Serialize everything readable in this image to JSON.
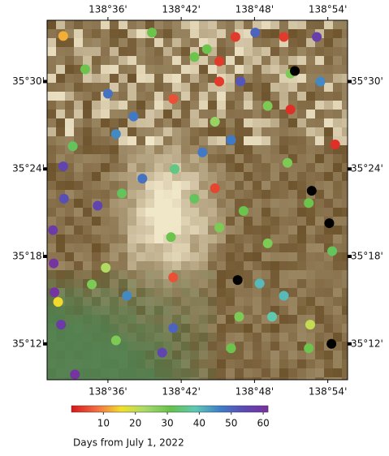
{
  "chart_data": {
    "type": "scatter",
    "xticks": [
      {
        "value": 138.6,
        "label": "138°36'"
      },
      {
        "value": 138.7,
        "label": "138°42'"
      },
      {
        "value": 138.8,
        "label": "138°48'"
      },
      {
        "value": 138.9,
        "label": "138°54'"
      }
    ],
    "yticks": [
      {
        "value": 35.5,
        "label": "35°30'"
      },
      {
        "value": 35.4,
        "label": "35°24'"
      },
      {
        "value": 35.3,
        "label": "35°18'"
      },
      {
        "value": 35.2,
        "label": "35°12'"
      }
    ],
    "xlim": [
      138.517,
      138.927
    ],
    "ylim": [
      35.159,
      35.57
    ],
    "colorbar": {
      "label": "Days from July 1, 2022",
      "clim": [
        0,
        61.5
      ],
      "ticks": [
        10,
        20,
        30,
        40,
        50,
        60
      ],
      "colormap": [
        "#d7191c",
        "#f46d43",
        "#f2e02c",
        "#a6d96a",
        "#66c24a",
        "#5ec9b5",
        "#3e7fc8",
        "#5b49b4",
        "#7b2f9e"
      ]
    },
    "points": {
      "lon": [
        138.539,
        138.774,
        138.84,
        138.752,
        138.752,
        138.849,
        138.91,
        138.746,
        138.689,
        138.689,
        138.6,
        138.635,
        138.611,
        138.729,
        138.647,
        138.539,
        138.54,
        138.586,
        138.525,
        138.526,
        138.527,
        138.536,
        138.555,
        138.674,
        138.689,
        138.626,
        138.885,
        138.801,
        138.781,
        138.89,
        138.768,
        138.807,
        138.84,
        138.824,
        138.691,
        138.619,
        138.686,
        138.752,
        138.785,
        138.818,
        138.874,
        138.906,
        138.718,
        138.66,
        138.818,
        138.746,
        138.569,
        138.552,
        138.578,
        138.611,
        138.768,
        138.874,
        138.779,
        138.845,
        138.735,
        138.849,
        138.876,
        138.532,
        138.597,
        138.718
      ],
      "lat": [
        35.552,
        35.551,
        35.551,
        35.523,
        35.5,
        35.468,
        35.428,
        35.378,
        35.276,
        35.48,
        35.486,
        35.46,
        35.44,
        35.419,
        35.389,
        35.403,
        35.366,
        35.358,
        35.33,
        35.292,
        35.259,
        35.222,
        35.165,
        35.19,
        35.218,
        35.255,
        35.551,
        35.556,
        35.5,
        35.5,
        35.433,
        35.269,
        35.255,
        35.231,
        35.4,
        35.372,
        35.322,
        35.333,
        35.352,
        35.315,
        35.361,
        35.306,
        35.528,
        35.556,
        35.472,
        35.454,
        35.514,
        35.426,
        35.268,
        35.204,
        35.195,
        35.195,
        35.231,
        35.407,
        35.537,
        35.509,
        35.222,
        35.248,
        35.287,
        35.366
      ],
      "days": [
        12,
        3,
        3,
        3,
        3,
        2,
        2,
        4,
        5,
        5,
        48,
        47,
        45,
        47,
        48,
        55,
        53,
        55,
        58,
        60,
        60,
        58,
        60,
        55,
        50,
        45,
        57,
        50,
        52,
        45,
        47,
        40,
        40,
        38,
        35,
        32,
        30,
        28,
        30,
        28,
        30,
        32,
        30,
        30,
        28,
        25,
        30,
        32,
        28,
        28,
        30,
        30,
        28,
        28,
        30,
        28,
        20,
        15,
        22,
        32
      ]
    },
    "black_points": {
      "color": "#000000",
      "lon": [
        138.855,
        138.878,
        138.902,
        138.777,
        138.905
      ],
      "lat": [
        35.512,
        35.375,
        35.338,
        35.273,
        35.2
      ]
    }
  }
}
